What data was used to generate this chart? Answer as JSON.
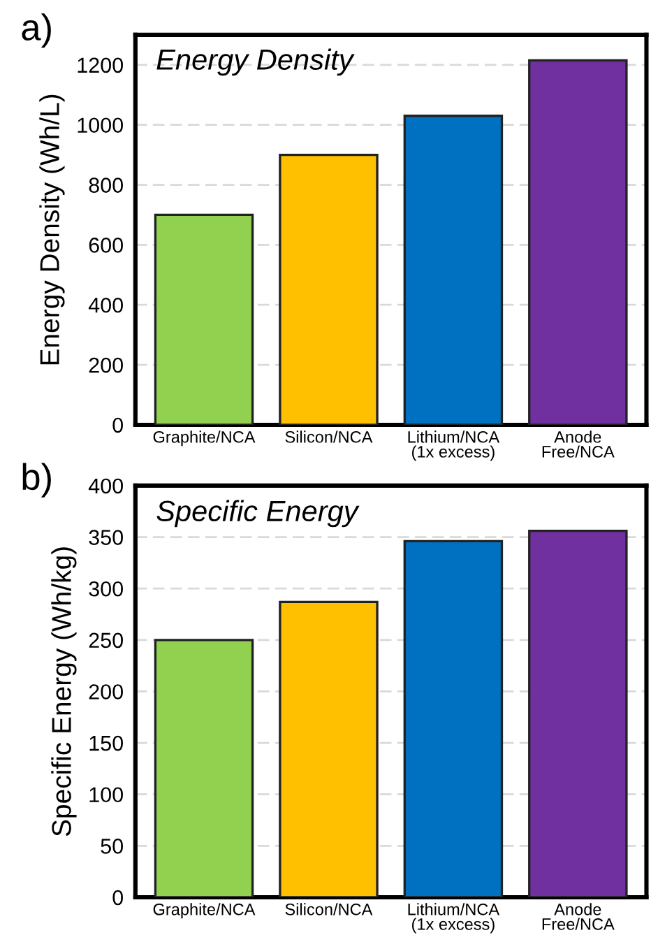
{
  "chart_data": [
    {
      "type": "bar",
      "title": "Energy Density",
      "ylabel": "Energy Density (Wh/L)",
      "annotations": [
        "a)"
      ],
      "categories": [
        "Graphite/NCA",
        "Silicon/NCA",
        "Lithium/NCA\n(1x excess)",
        "Anode\nFree/NCA"
      ],
      "values": [
        700,
        900,
        1030,
        1215
      ],
      "colors": [
        "#92d050",
        "#ffc000",
        "#0070c0",
        "#7030a0"
      ],
      "ylim": [
        0,
        1300
      ],
      "yticks": [
        0,
        200,
        400,
        600,
        800,
        1000,
        1200
      ],
      "grid": "y"
    },
    {
      "type": "bar",
      "title": "Specific Energy",
      "ylabel": "Specific Energy (Wh/kg)",
      "annotations": [
        "b)"
      ],
      "categories": [
        "Graphite/NCA",
        "Silicon/NCA",
        "Lithium/NCA\n(1x excess)",
        "Anode\nFree/NCA"
      ],
      "values": [
        250,
        287,
        346,
        356
      ],
      "colors": [
        "#92d050",
        "#ffc000",
        "#0070c0",
        "#7030a0"
      ],
      "ylim": [
        0,
        400
      ],
      "yticks": [
        0,
        50,
        100,
        150,
        200,
        250,
        300,
        350,
        400
      ],
      "grid": "y"
    }
  ]
}
